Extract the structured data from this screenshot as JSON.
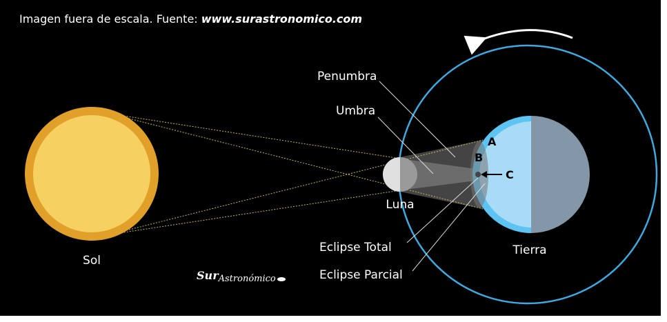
{
  "caption": {
    "text": "Imagen fuera de escala. Fuente: ",
    "source": "www.surastronomico.com"
  },
  "labels": {
    "sun": "Sol",
    "moon": "Luna",
    "earth": "Tierra",
    "penumbra": "Penumbra",
    "umbra": "Umbra",
    "a": "A",
    "b": "B",
    "c": "C",
    "total": "Eclipse Total",
    "partial": "Eclipse Parcial"
  },
  "logo": {
    "prefix": "Sur",
    "name": "Astronómico"
  }
}
